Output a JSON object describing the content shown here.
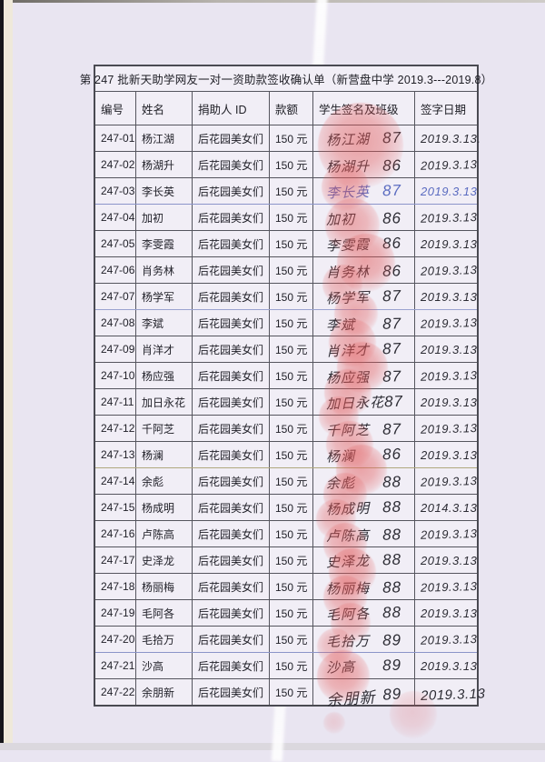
{
  "page": {
    "title": "第 247 批新天助学网友一对一资助款签收确认单（新营盘中学 2019.3---2019.8）"
  },
  "table": {
    "headers": [
      "编号",
      "姓名",
      "捐助人 ID",
      "款额",
      "学生签名及班级",
      "签字日期"
    ],
    "rows": [
      {
        "no": "247-01",
        "name": "杨江湖",
        "donor": "后花园美女们",
        "amount": "150 元",
        "sig": "杨江湖",
        "class": "87",
        "date": "2019.3.13.",
        "ink": "black"
      },
      {
        "no": "247-02",
        "name": "杨湖升",
        "donor": "后花园美女们",
        "amount": "150 元",
        "sig": "杨湖升",
        "class": "86",
        "date": "2019.3.13",
        "ink": "black"
      },
      {
        "no": "247-03",
        "name": "李长英",
        "donor": "后花园美女们",
        "amount": "150 元",
        "sig": "李长英",
        "class": "87",
        "date": "2019.3.13",
        "ink": "blue"
      },
      {
        "no": "247-04",
        "name": "加初",
        "donor": "后花园美女们",
        "amount": "150 元",
        "sig": "加初",
        "class": "86",
        "date": "2019.3.13",
        "ink": "black"
      },
      {
        "no": "247-05",
        "name": "李雯霞",
        "donor": "后花园美女们",
        "amount": "150 元",
        "sig": "李雯霞",
        "class": "86",
        "date": "2019.3.13",
        "ink": "black"
      },
      {
        "no": "247-06",
        "name": "肖务林",
        "donor": "后花园美女们",
        "amount": "150 元",
        "sig": "肖务林",
        "class": "86",
        "date": "2019.3.13",
        "ink": "black"
      },
      {
        "no": "247-07",
        "name": "杨学军",
        "donor": "后花园美女们",
        "amount": "150 元",
        "sig": "杨学军",
        "class": "87",
        "date": "2019.3.13",
        "ink": "black"
      },
      {
        "no": "247-08",
        "name": "李斌",
        "donor": "后花园美女们",
        "amount": "150 元",
        "sig": "李斌",
        "class": "87",
        "date": "2019.3.13",
        "ink": "black"
      },
      {
        "no": "247-09",
        "name": "肖洋才",
        "donor": "后花园美女们",
        "amount": "150 元",
        "sig": "肖洋才",
        "class": "87",
        "date": "2019.3.13",
        "ink": "black"
      },
      {
        "no": "247-10",
        "name": "杨应强",
        "donor": "后花园美女们",
        "amount": "150 元",
        "sig": "杨应强",
        "class": "87",
        "date": "2019.3.13",
        "ink": "black"
      },
      {
        "no": "247-11",
        "name": "加日永花",
        "donor": "后花园美女们",
        "amount": "150 元",
        "sig": "加日永花",
        "class": "87",
        "date": "2019.3.13",
        "ink": "black"
      },
      {
        "no": "247-12",
        "name": "千阿芝",
        "donor": "后花园美女们",
        "amount": "150 元",
        "sig": "千阿芝",
        "class": "87",
        "date": "2019.3.13",
        "ink": "black"
      },
      {
        "no": "247-13",
        "name": "杨澜",
        "donor": "后花园美女们",
        "amount": "150 元",
        "sig": "杨澜",
        "class": "86",
        "date": "2019.3.13",
        "ink": "black"
      },
      {
        "no": "247-14",
        "name": "余彪",
        "donor": "后花园美女们",
        "amount": "150 元",
        "sig": "余彪",
        "class": "88",
        "date": "2019.3.13",
        "ink": "black"
      },
      {
        "no": "247-15",
        "name": "杨成明",
        "donor": "后花园美女们",
        "amount": "150 元",
        "sig": "杨成明",
        "class": "88",
        "date": "2014.3.13",
        "ink": "black"
      },
      {
        "no": "247-16",
        "name": "卢陈高",
        "donor": "后花园美女们",
        "amount": "150 元",
        "sig": "卢陈高",
        "class": "88",
        "date": "2019.3.13",
        "ink": "black"
      },
      {
        "no": "247-17",
        "name": "史泽龙",
        "donor": "后花园美女们",
        "amount": "150 元",
        "sig": "史泽龙",
        "class": "88",
        "date": "2019.3.13",
        "ink": "black"
      },
      {
        "no": "247-18",
        "name": "杨丽梅",
        "donor": "后花园美女们",
        "amount": "150 元",
        "sig": "杨丽梅",
        "class": "88",
        "date": "2019.3.13",
        "ink": "black"
      },
      {
        "no": "247-19",
        "name": "毛阿各",
        "donor": "后花园美女们",
        "amount": "150 元",
        "sig": "毛阿各",
        "class": "88",
        "date": "2019.3.13",
        "ink": "black"
      },
      {
        "no": "247-20",
        "name": "毛拾万",
        "donor": "后花园美女们",
        "amount": "150 元",
        "sig": "毛拾万",
        "class": "89",
        "date": "2019.3.13",
        "ink": "black"
      },
      {
        "no": "247-21",
        "name": "沙高",
        "donor": "后花园美女们",
        "amount": "150 元",
        "sig": "沙高",
        "class": "89",
        "date": "2019.3.13",
        "ink": "black"
      },
      {
        "no": "247-22",
        "name": "余朋新",
        "donor": "后花园美女们",
        "amount": "150 元",
        "sig": "余朋新",
        "class": "89",
        "date": "2019.3.13",
        "ink": "black"
      }
    ]
  },
  "colors": {
    "page_background": "#e9e5f1",
    "cell_background": "#f1eef6",
    "stamp_red": "#e25555",
    "ink": "#2c2c34",
    "blue_ink": "#5a6bc0"
  }
}
